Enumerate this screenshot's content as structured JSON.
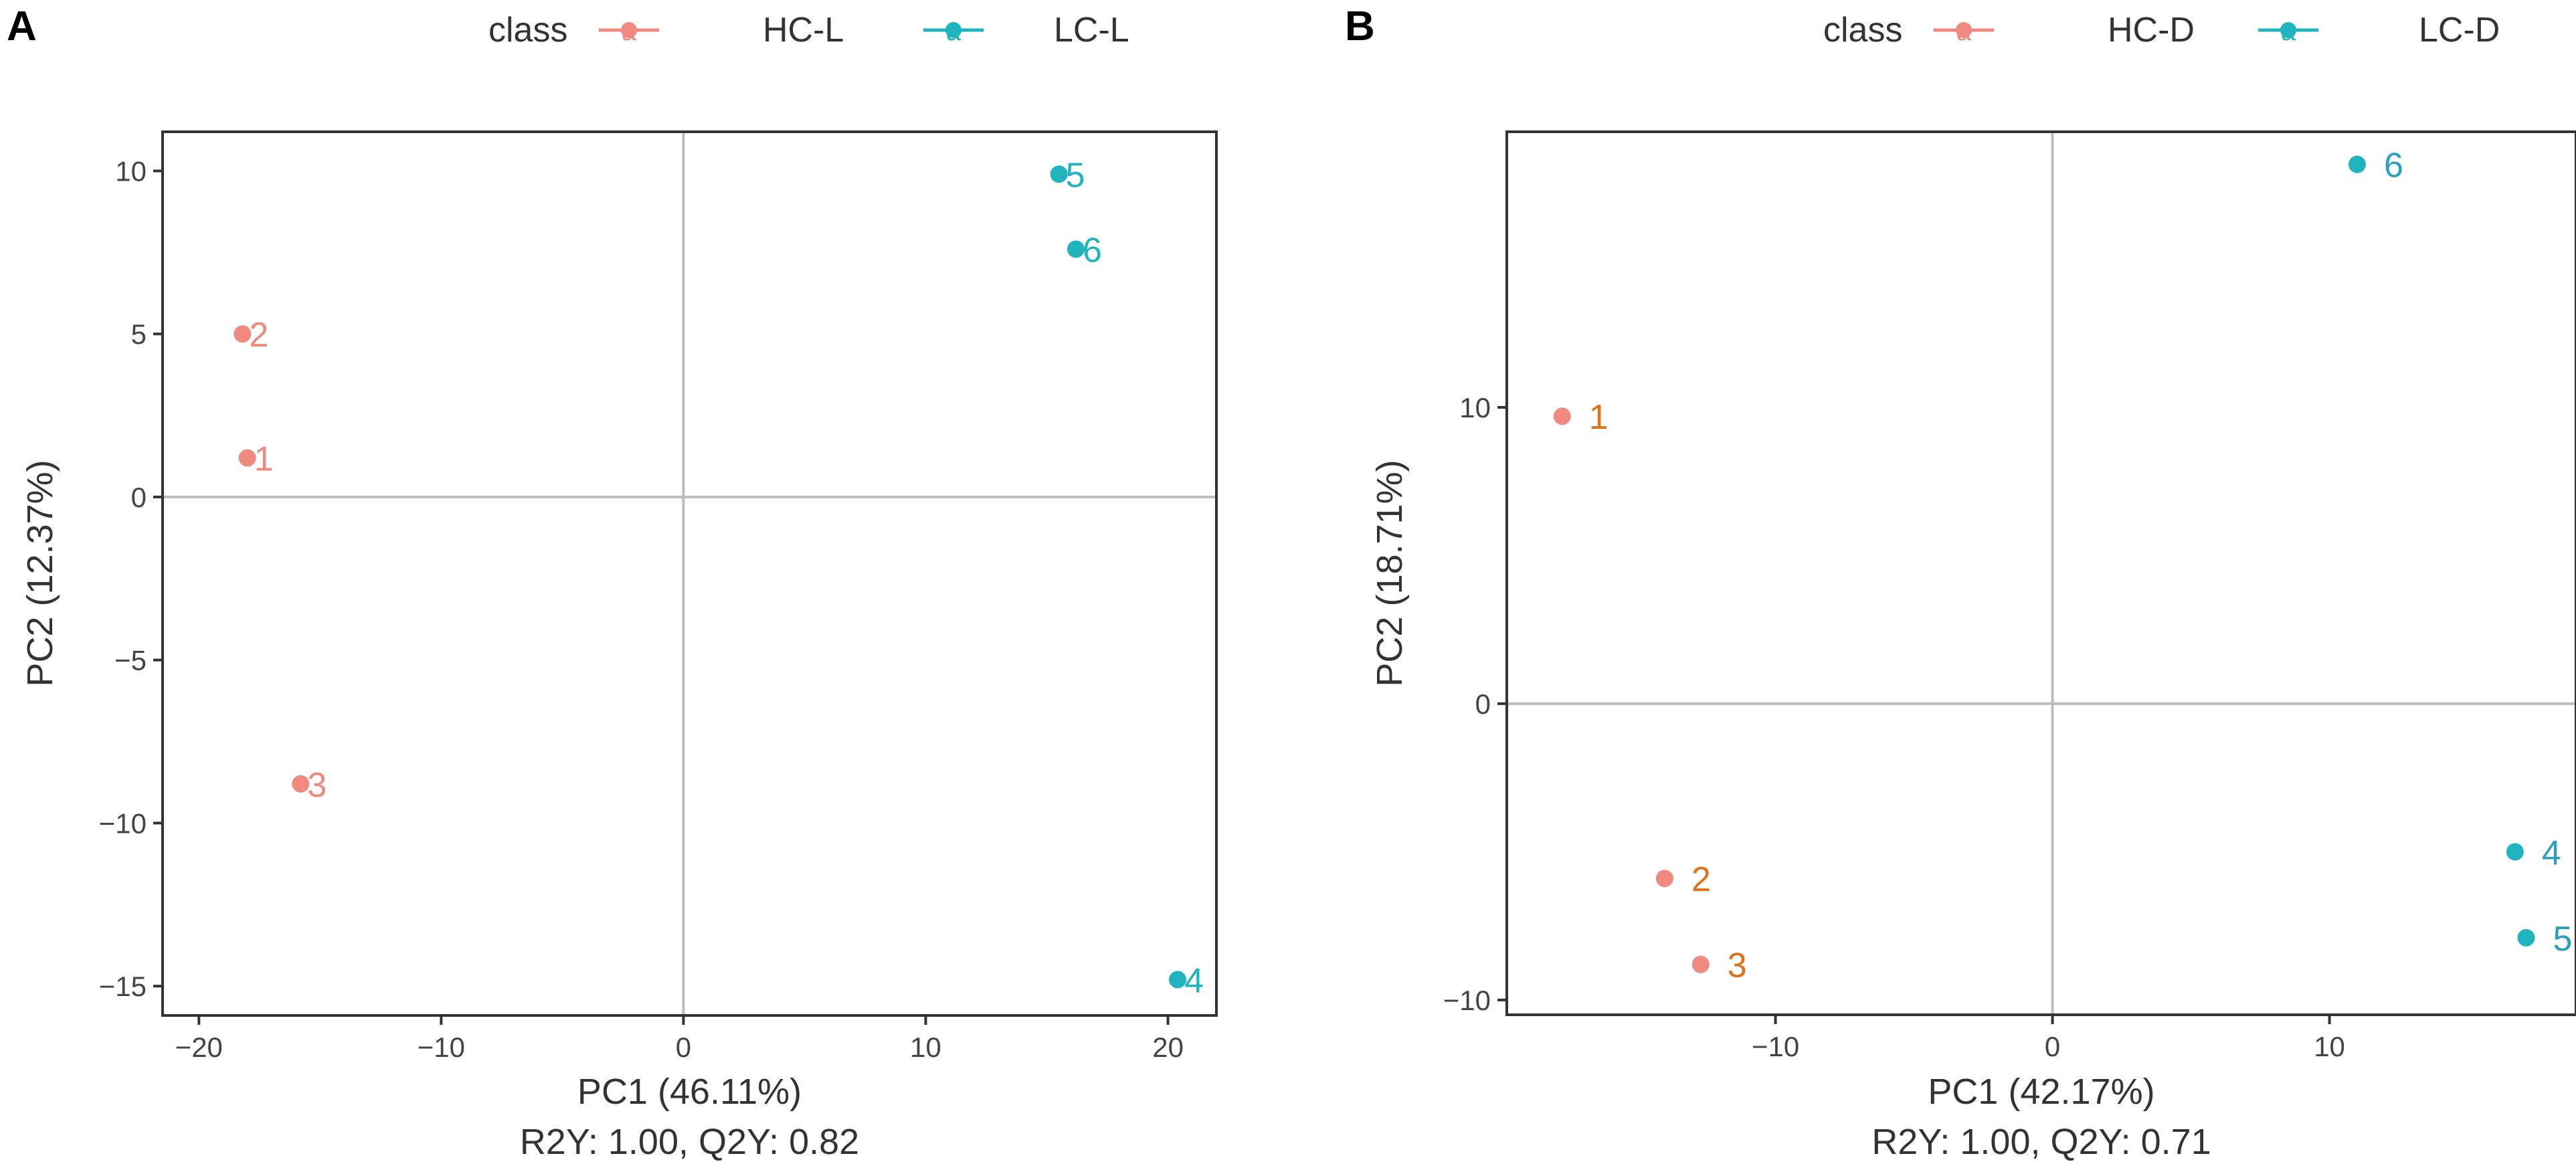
{
  "colors": {
    "hc": "#F08A80",
    "lc": "#20B4BF",
    "hc_label_b": "#E0701A",
    "lc_label_b": "#2AA0BE",
    "axis_text": "#444444",
    "grid": "#BDBDBD",
    "frame": "#333333"
  },
  "chart_data": [
    {
      "panel": "A",
      "type": "scatter",
      "legend": {
        "title": "class",
        "entries": [
          {
            "name": "HC-L",
            "color": "#F08A80"
          },
          {
            "name": "LC-L",
            "color": "#20B4BF"
          }
        ],
        "position": "top"
      },
      "xlabel": "PC1 (46.11%)",
      "subtitle": "R2Y: 1.00, Q2Y: 0.82",
      "ylabel": "PC2 (12.37%)",
      "xlim": [
        -21.5,
        22.0
      ],
      "ylim": [
        -15.9,
        11.2
      ],
      "xticks": [
        -20,
        -10,
        0,
        10,
        20
      ],
      "xtick_labels": [
        "−20",
        "−10",
        "0",
        "10",
        "20"
      ],
      "yticks": [
        -15,
        -10,
        -5,
        0,
        5,
        10
      ],
      "ytick_labels": [
        "−15",
        "−10",
        "−5",
        "0",
        "5",
        "10"
      ],
      "zero_lines": true,
      "points": [
        {
          "label": "1",
          "class": "HC-L",
          "x": -18.0,
          "y": 1.2
        },
        {
          "label": "2",
          "class": "HC-L",
          "x": -18.2,
          "y": 5.0
        },
        {
          "label": "3",
          "class": "HC-L",
          "x": -15.8,
          "y": -8.8
        },
        {
          "label": "4",
          "class": "LC-L",
          "x": 20.4,
          "y": -14.8
        },
        {
          "label": "5",
          "class": "LC-L",
          "x": 15.5,
          "y": 9.9
        },
        {
          "label": "6",
          "class": "LC-L",
          "x": 16.2,
          "y": 7.6
        }
      ]
    },
    {
      "panel": "B",
      "type": "scatter",
      "legend": {
        "title": "class",
        "entries": [
          {
            "name": "HC-D",
            "color": "#F08A80"
          },
          {
            "name": "LC-D",
            "color": "#20B4BF"
          }
        ],
        "position": "top"
      },
      "xlabel": "PC1 (42.17%)",
      "subtitle": "R2Y: 1.00, Q2Y: 0.71",
      "ylabel": "PC2 (18.71%)",
      "xlim": [
        -19.7,
        18.9
      ],
      "ylim": [
        -10.5,
        19.3
      ],
      "xticks": [
        -10,
        0,
        10
      ],
      "xtick_labels": [
        "−10",
        "0",
        "10"
      ],
      "yticks": [
        -10,
        0,
        10
      ],
      "ytick_labels": [
        "−10",
        "0",
        "10"
      ],
      "zero_lines": true,
      "points": [
        {
          "label": "1",
          "class": "HC-D",
          "x": -17.7,
          "y": 9.7
        },
        {
          "label": "2",
          "class": "HC-D",
          "x": -14.0,
          "y": -5.9
        },
        {
          "label": "3",
          "class": "HC-D",
          "x": -12.7,
          "y": -8.8
        },
        {
          "label": "4",
          "class": "LC-D",
          "x": 16.7,
          "y": -5.0
        },
        {
          "label": "5",
          "class": "LC-D",
          "x": 17.1,
          "y": -7.9
        },
        {
          "label": "6",
          "class": "LC-D",
          "x": 11.0,
          "y": 18.2
        }
      ]
    }
  ]
}
